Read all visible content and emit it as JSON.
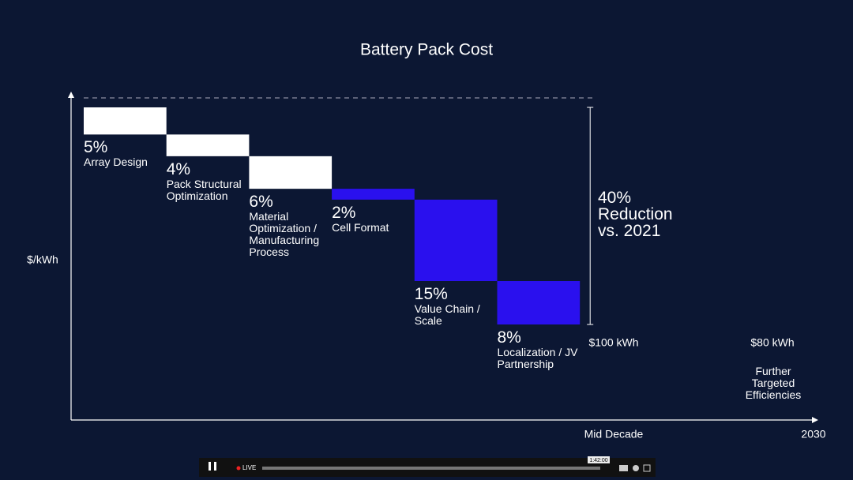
{
  "chart_data": {
    "type": "waterfall",
    "title": "Battery Pack Cost",
    "y_label": "$/kWh",
    "categories": [
      "Array Design",
      "Pack Structural Optimization",
      "Material Optimization / Manufacturing Process",
      "Cell Format",
      "Value Chain / Scale",
      "Localization / JV Partnership"
    ],
    "values": [
      5,
      4,
      6,
      2,
      15,
      8
    ],
    "value_labels": [
      "5%",
      "4%",
      "6%",
      "2%",
      "15%",
      "8%"
    ],
    "colors": [
      "#ffffff",
      "#ffffff",
      "#ffffff",
      "#2a10ee",
      "#2a10ee",
      "#2a10ee"
    ],
    "total_label": "40%",
    "total_caption": "Reduction vs. 2021",
    "milestones": [
      "Mid Decade",
      "2030"
    ],
    "milestone_costs": [
      "$100 kWh",
      "$80 kWh"
    ],
    "further_note": "Further Targeted Efficiencies"
  },
  "player": {
    "live": "LIVE",
    "time": "1:42:00"
  }
}
